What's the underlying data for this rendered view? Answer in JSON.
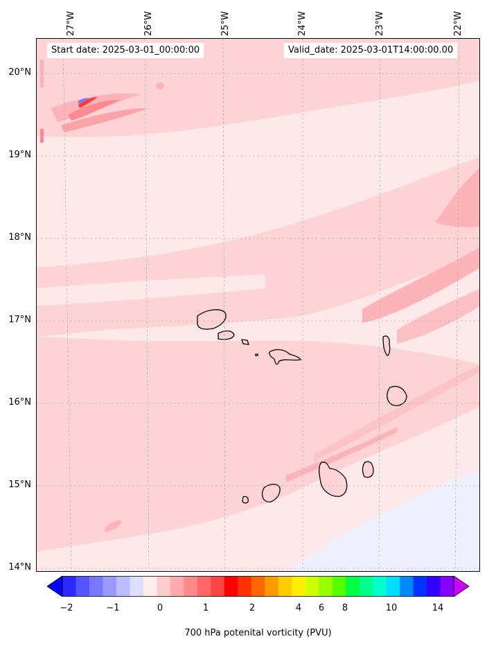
{
  "map": {
    "start_date": "Start date: 2025-03-01_00:00:00",
    "valid_date": "Valid_date: 2025-03-01T14:00:00.00",
    "lon_labels": [
      "27°W",
      "26°W",
      "25°W",
      "24°W",
      "23°W",
      "22°W"
    ],
    "lat_labels": [
      "20°N",
      "19°N",
      "18°N",
      "17°N",
      "16°N",
      "15°N",
      "14°N"
    ],
    "islands": [
      "Santo Antão",
      "São Vicente",
      "Santa Luzia",
      "São Nicolau",
      "Sal",
      "Boa Vista",
      "Santiago",
      "Maio",
      "Fogo",
      "Brava"
    ]
  },
  "colorbar": {
    "title": "700 hPa potenital vorticity (PVU)",
    "tick_labels": [
      "−2",
      "−1",
      "0",
      "1",
      "2",
      "4",
      "6",
      "8",
      "10",
      "14"
    ],
    "colors": [
      "#0000ff",
      "#2a2aff",
      "#5555ff",
      "#7777ff",
      "#9999ff",
      "#bbbbff",
      "#ddddff",
      "#ffeeee",
      "#ffcccc",
      "#ffaaaa",
      "#ff8888",
      "#ff6666",
      "#ff4444",
      "#ff0000",
      "#ff3300",
      "#ff6600",
      "#ff9900",
      "#ffcc00",
      "#ffee00",
      "#ccff00",
      "#99ff00",
      "#55ff00",
      "#00ff44",
      "#00ff88",
      "#00ffcc",
      "#00ddff",
      "#0088ff",
      "#0033ff",
      "#3300ff",
      "#8800ff",
      "#bb00ff"
    ]
  }
}
